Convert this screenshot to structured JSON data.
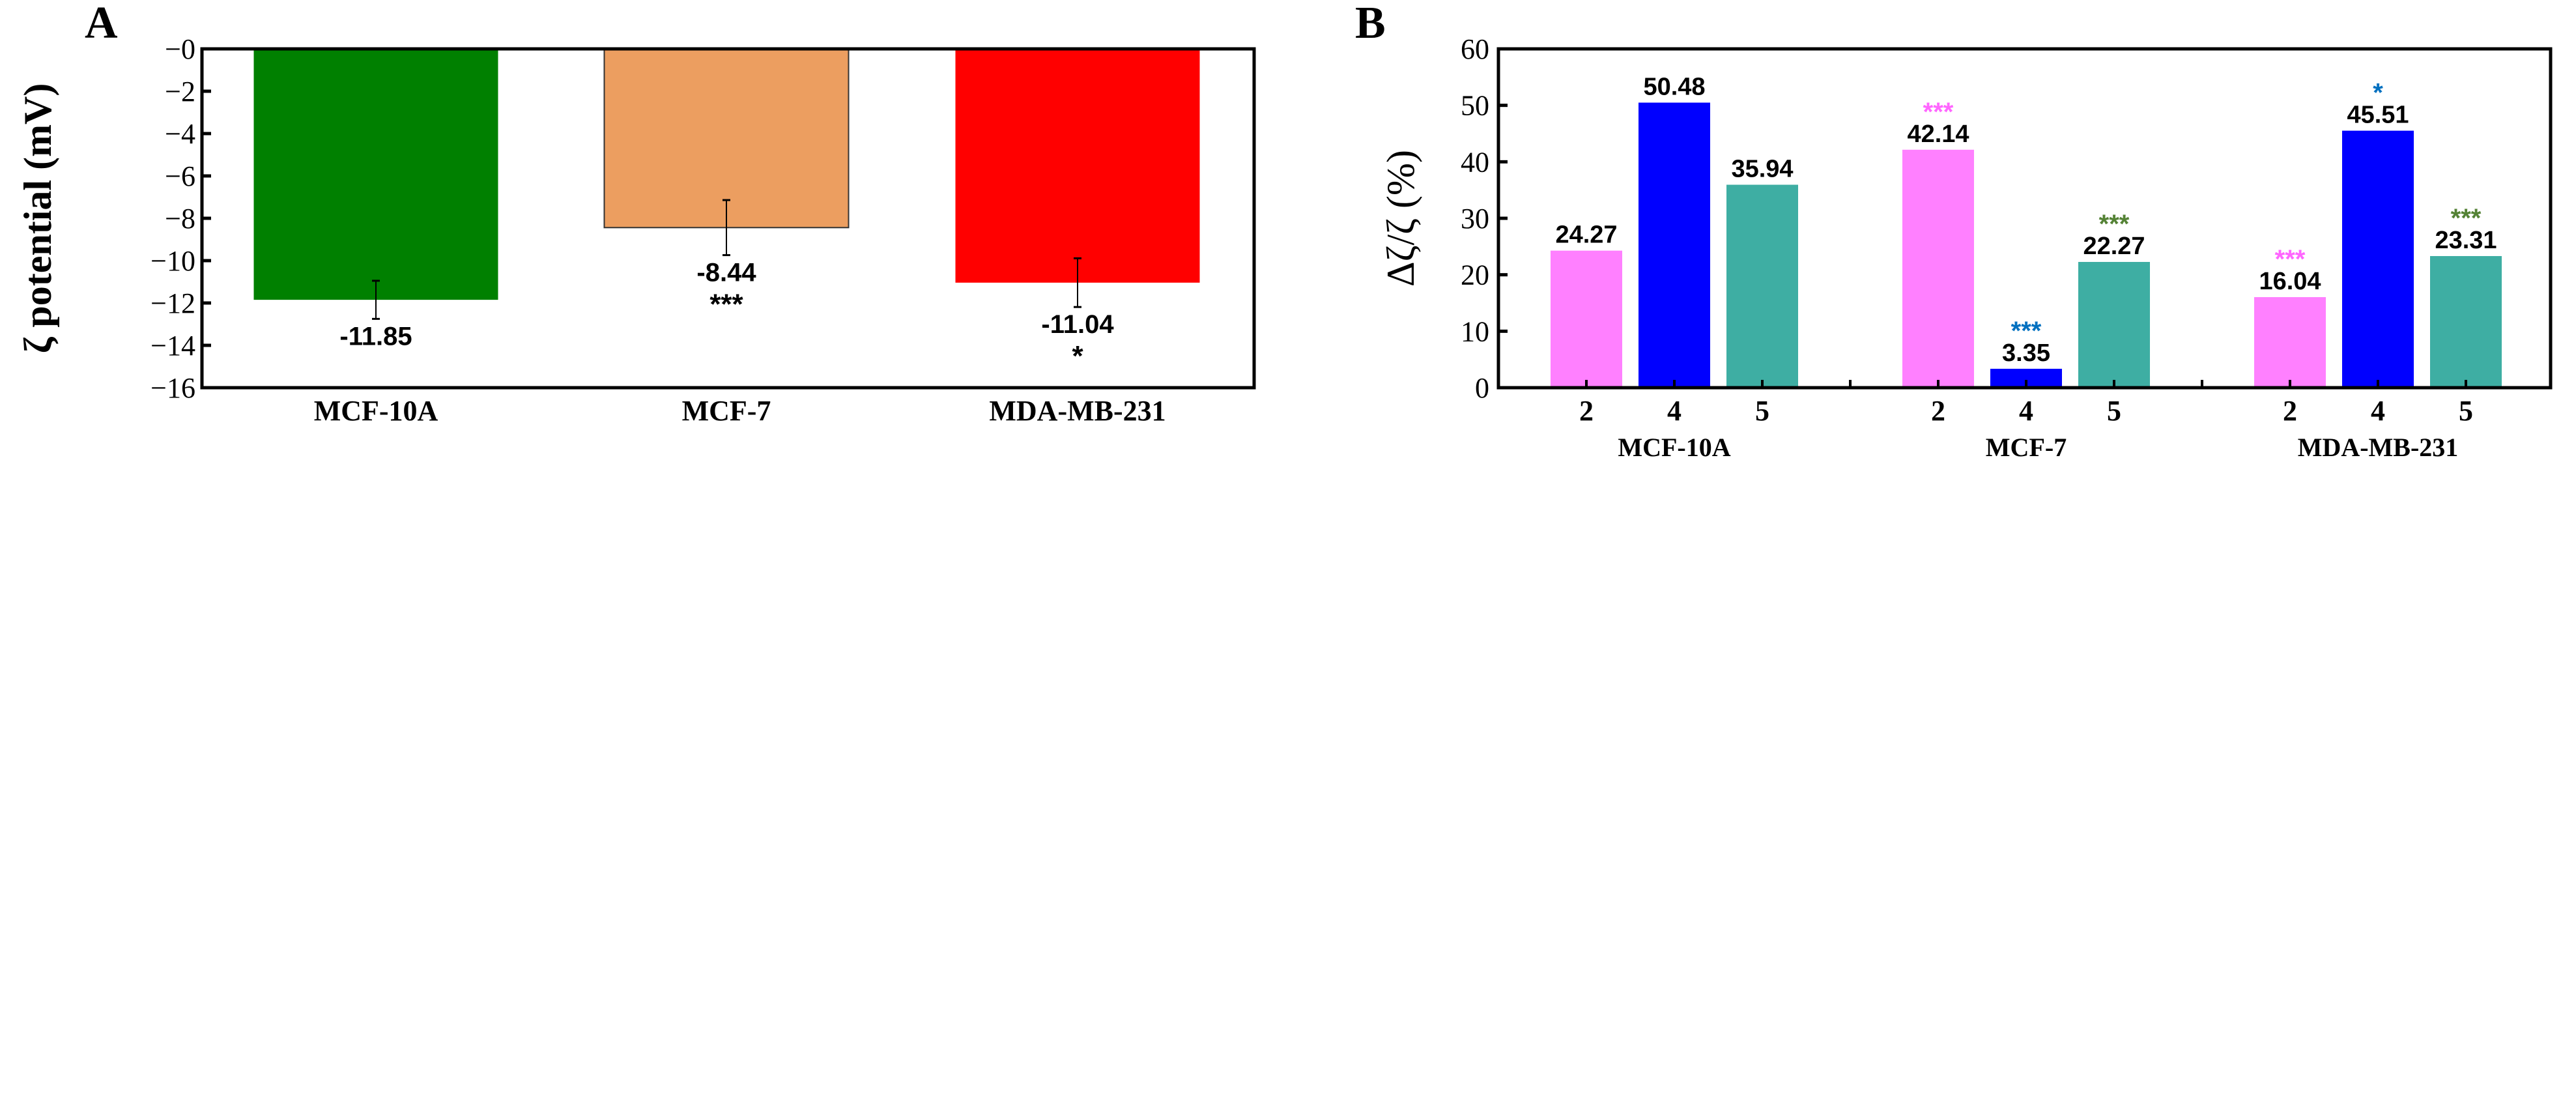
{
  "chart_data": [
    {
      "panel": "A",
      "type": "bar",
      "title": "",
      "xlabel": "",
      "ylabel": "ζ potential (mV)",
      "ylim": [
        -16,
        0
      ],
      "yticks": [
        0,
        -2,
        -4,
        -6,
        -8,
        -10,
        -12,
        -14,
        -16
      ],
      "ytick_labels": [
        "−0",
        "−2",
        "−4",
        "−6",
        "−8",
        "−10",
        "−12",
        "−14",
        "−16"
      ],
      "categories": [
        "MCF-10A",
        "MCF-7",
        "MDA-MB-231"
      ],
      "values": [
        -11.85,
        -8.44,
        -11.04
      ],
      "errors": [
        0.9,
        1.3,
        1.15
      ],
      "value_labels": [
        "-11.85",
        "-8.44",
        "-11.04"
      ],
      "significance": [
        "",
        "***",
        "*"
      ],
      "colors": [
        "#008000",
        "#EC9E60",
        "#FF0000"
      ],
      "grid": false
    },
    {
      "panel": "B",
      "type": "bar",
      "title": "",
      "xlabel": "",
      "ylabel": "Δζ/ζ (%)",
      "ylim": [
        0,
        60
      ],
      "yticks": [
        0,
        10,
        20,
        30,
        40,
        50,
        60
      ],
      "ytick_labels": [
        "0",
        "10",
        "20",
        "30",
        "40",
        "50",
        "60"
      ],
      "categories": [
        "MCF-10A",
        "MCF-7",
        "MDA-MB-231"
      ],
      "subcategories": [
        "2",
        "4",
        "5"
      ],
      "series": [
        {
          "name": "2",
          "color": "#FF80FF",
          "star_color": "#FF66FF",
          "values": [
            24.27,
            42.14,
            16.04
          ],
          "value_labels": [
            "24.27",
            "42.14",
            "16.04"
          ],
          "significance": [
            "",
            "***",
            "***"
          ]
        },
        {
          "name": "4",
          "color": "#0000FF",
          "star_color": "#0070C0",
          "values": [
            50.48,
            3.35,
            45.51
          ],
          "value_labels": [
            "50.48",
            "3.35",
            "45.51"
          ],
          "significance": [
            "",
            "***",
            "*"
          ]
        },
        {
          "name": "5",
          "color": "#3EAEA3",
          "star_color": "#548235",
          "values": [
            35.94,
            22.27,
            23.31
          ],
          "value_labels": [
            "35.94",
            "22.27",
            "23.31"
          ],
          "significance": [
            "",
            "***",
            "***"
          ]
        }
      ],
      "grid": false
    }
  ]
}
